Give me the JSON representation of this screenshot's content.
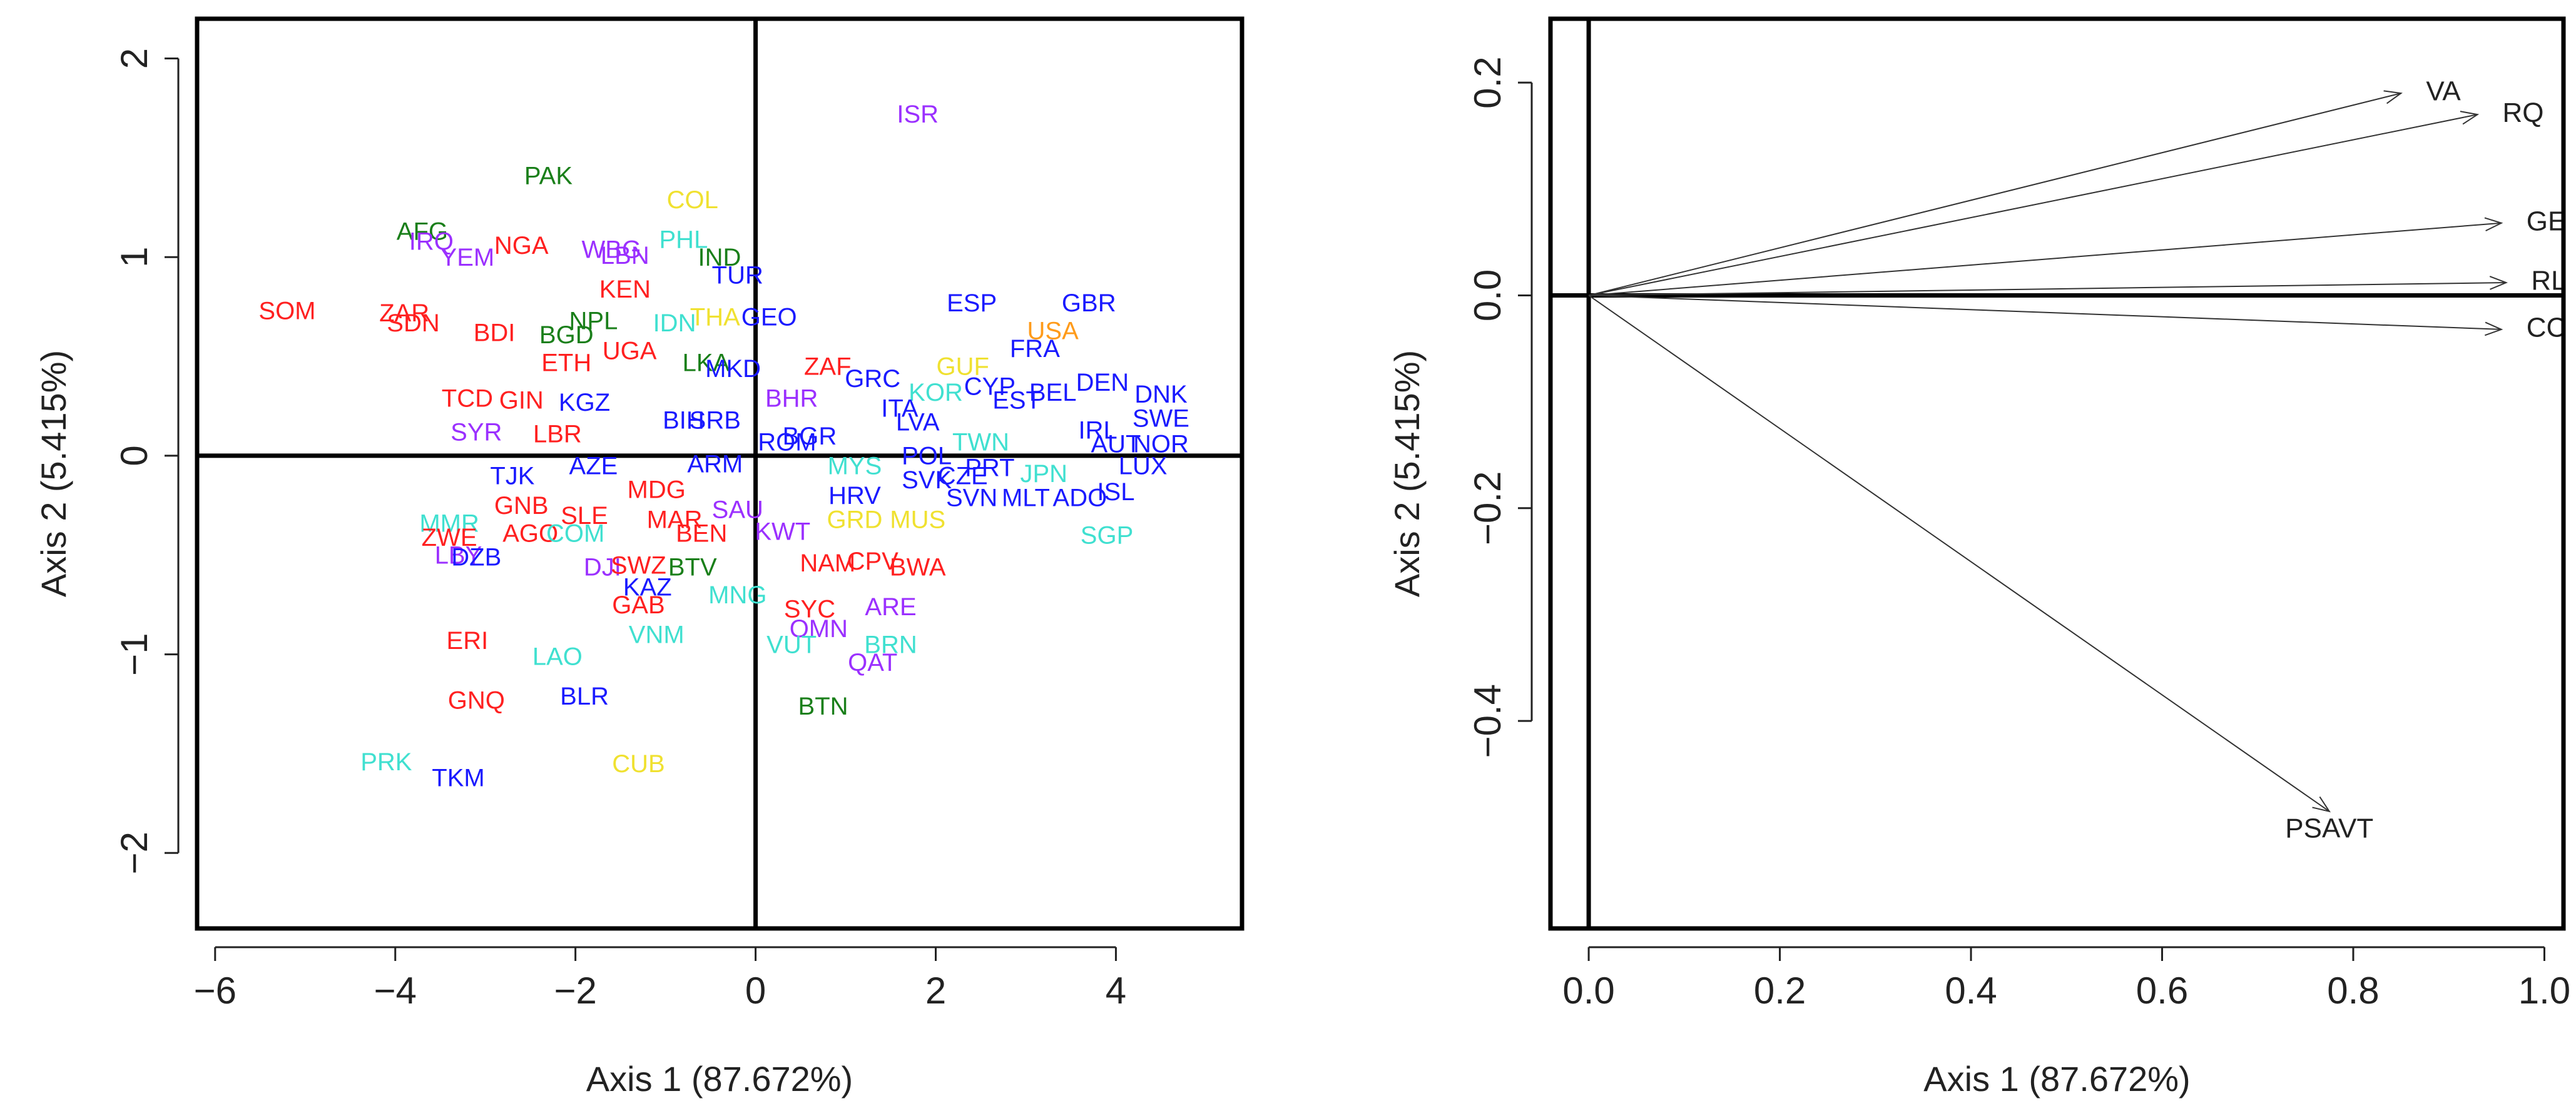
{
  "chart_data": [
    {
      "type": "scatter",
      "title": "",
      "xlabel": "Axis 1 (87.672%)",
      "ylabel": "Axis 2 (5.415%)",
      "xlim": [
        -6.2,
        5.4
      ],
      "ylim": [
        -2.38,
        2.2
      ],
      "xticks": [
        -6,
        -4,
        -2,
        0,
        2,
        4
      ],
      "xtick_labels": [
        "−6",
        "−4",
        "−2",
        "0",
        "2",
        "4"
      ],
      "yticks": [
        -2,
        -1,
        0,
        1,
        2
      ],
      "ytick_labels": [
        "−2",
        "−1",
        "0",
        "1",
        "2"
      ],
      "reference_lines": {
        "x": 0,
        "y": 0
      },
      "points": [
        {
          "label": "ISR",
          "x": 1.8,
          "y": 1.71,
          "color": "#9b30ff"
        },
        {
          "label": "PAK",
          "x": -2.3,
          "y": 1.4,
          "color": "#1a7f1a"
        },
        {
          "label": "COL",
          "x": -0.7,
          "y": 1.28,
          "color": "#f0e130"
        },
        {
          "label": "AFG",
          "x": -3.7,
          "y": 1.12,
          "color": "#1a7f1a"
        },
        {
          "label": "IRQ",
          "x": -3.6,
          "y": 1.07,
          "color": "#9b30ff"
        },
        {
          "label": "YEM",
          "x": -3.2,
          "y": 0.99,
          "color": "#9b30ff"
        },
        {
          "label": "NGA",
          "x": -2.6,
          "y": 1.05,
          "color": "#ff2020"
        },
        {
          "label": "WBG",
          "x": -1.6,
          "y": 1.03,
          "color": "#9b30ff"
        },
        {
          "label": "LBN",
          "x": -1.45,
          "y": 1.0,
          "color": "#9b30ff"
        },
        {
          "label": "PHL",
          "x": -0.8,
          "y": 1.08,
          "color": "#40e0d0"
        },
        {
          "label": "IND",
          "x": -0.4,
          "y": 0.99,
          "color": "#1a7f1a"
        },
        {
          "label": "TUR",
          "x": -0.2,
          "y": 0.9,
          "color": "#1a1aff"
        },
        {
          "label": "KEN",
          "x": -1.45,
          "y": 0.83,
          "color": "#ff2020"
        },
        {
          "label": "SOM",
          "x": -5.2,
          "y": 0.72,
          "color": "#ff2020"
        },
        {
          "label": "ZAR",
          "x": -3.9,
          "y": 0.71,
          "color": "#ff2020"
        },
        {
          "label": "SDN",
          "x": -3.8,
          "y": 0.66,
          "color": "#ff2020"
        },
        {
          "label": "BDI",
          "x": -2.9,
          "y": 0.61,
          "color": "#ff2020"
        },
        {
          "label": "NPL",
          "x": -1.8,
          "y": 0.67,
          "color": "#1a7f1a"
        },
        {
          "label": "BGD",
          "x": -2.1,
          "y": 0.6,
          "color": "#1a7f1a"
        },
        {
          "label": "IDN",
          "x": -0.9,
          "y": 0.66,
          "color": "#40e0d0"
        },
        {
          "label": "THA",
          "x": -0.45,
          "y": 0.69,
          "color": "#f0e130"
        },
        {
          "label": "GEO",
          "x": 0.15,
          "y": 0.69,
          "color": "#1a1aff"
        },
        {
          "label": "ESP",
          "x": 2.4,
          "y": 0.76,
          "color": "#1a1aff"
        },
        {
          "label": "GBR",
          "x": 3.7,
          "y": 0.76,
          "color": "#1a1aff"
        },
        {
          "label": "USA",
          "x": 3.3,
          "y": 0.62,
          "color": "#ff9b1a"
        },
        {
          "label": "FRA",
          "x": 3.1,
          "y": 0.53,
          "color": "#1a1aff"
        },
        {
          "label": "UGA",
          "x": -1.4,
          "y": 0.52,
          "color": "#ff2020"
        },
        {
          "label": "ETH",
          "x": -2.1,
          "y": 0.46,
          "color": "#ff2020"
        },
        {
          "label": "LKA",
          "x": -0.55,
          "y": 0.46,
          "color": "#1a7f1a"
        },
        {
          "label": "MKD",
          "x": -0.25,
          "y": 0.43,
          "color": "#1a1aff"
        },
        {
          "label": "ZAF",
          "x": 0.8,
          "y": 0.44,
          "color": "#ff2020"
        },
        {
          "label": "GRC",
          "x": 1.3,
          "y": 0.38,
          "color": "#1a1aff"
        },
        {
          "label": "GUF",
          "x": 2.3,
          "y": 0.44,
          "color": "#f0e130"
        },
        {
          "label": "KOR",
          "x": 2.0,
          "y": 0.31,
          "color": "#40e0d0"
        },
        {
          "label": "CYP",
          "x": 2.6,
          "y": 0.34,
          "color": "#1a1aff"
        },
        {
          "label": "BEL",
          "x": 3.3,
          "y": 0.31,
          "color": "#1a1aff"
        },
        {
          "label": "DEN",
          "x": 3.85,
          "y": 0.36,
          "color": "#1a1aff"
        },
        {
          "label": "DNK",
          "x": 4.5,
          "y": 0.3,
          "color": "#1a1aff"
        },
        {
          "label": "TCD",
          "x": -3.2,
          "y": 0.28,
          "color": "#ff2020"
        },
        {
          "label": "GIN",
          "x": -2.6,
          "y": 0.27,
          "color": "#ff2020"
        },
        {
          "label": "KGZ",
          "x": -1.9,
          "y": 0.26,
          "color": "#1a1aff"
        },
        {
          "label": "BHR",
          "x": 0.4,
          "y": 0.28,
          "color": "#9b30ff"
        },
        {
          "label": "ITA",
          "x": 1.6,
          "y": 0.23,
          "color": "#1a1aff"
        },
        {
          "label": "EST",
          "x": 2.9,
          "y": 0.27,
          "color": "#1a1aff"
        },
        {
          "label": "LVA",
          "x": 1.8,
          "y": 0.16,
          "color": "#1a1aff"
        },
        {
          "label": "SWE",
          "x": 4.5,
          "y": 0.18,
          "color": "#1a1aff"
        },
        {
          "label": "SYR",
          "x": -3.1,
          "y": 0.11,
          "color": "#9b30ff"
        },
        {
          "label": "LBR",
          "x": -2.2,
          "y": 0.1,
          "color": "#ff2020"
        },
        {
          "label": "BIH",
          "x": -0.8,
          "y": 0.17,
          "color": "#1a1aff"
        },
        {
          "label": "SRB",
          "x": -0.45,
          "y": 0.17,
          "color": "#1a1aff"
        },
        {
          "label": "ROM",
          "x": 0.35,
          "y": 0.06,
          "color": "#1a1aff"
        },
        {
          "label": "BGR",
          "x": 0.6,
          "y": 0.09,
          "color": "#1a1aff"
        },
        {
          "label": "TWN",
          "x": 2.5,
          "y": 0.06,
          "color": "#40e0d0"
        },
        {
          "label": "IRL",
          "x": 3.8,
          "y": 0.12,
          "color": "#1a1aff"
        },
        {
          "label": "AUT",
          "x": 4.0,
          "y": 0.05,
          "color": "#1a1aff"
        },
        {
          "label": "NOR",
          "x": 4.5,
          "y": 0.05,
          "color": "#1a1aff"
        },
        {
          "label": "ARM",
          "x": -0.45,
          "y": -0.05,
          "color": "#1a1aff"
        },
        {
          "label": "MYS",
          "x": 1.1,
          "y": -0.06,
          "color": "#40e0d0"
        },
        {
          "label": "POL",
          "x": 1.9,
          "y": -0.01,
          "color": "#1a1aff"
        },
        {
          "label": "PRT",
          "x": 2.6,
          "y": -0.07,
          "color": "#1a1aff"
        },
        {
          "label": "JPN",
          "x": 3.2,
          "y": -0.1,
          "color": "#40e0d0"
        },
        {
          "label": "LUX",
          "x": 4.3,
          "y": -0.06,
          "color": "#1a1aff"
        },
        {
          "label": "TJK",
          "x": -2.7,
          "y": -0.11,
          "color": "#1a1aff"
        },
        {
          "label": "AZE",
          "x": -1.8,
          "y": -0.06,
          "color": "#1a1aff"
        },
        {
          "label": "MDG",
          "x": -1.1,
          "y": -0.18,
          "color": "#ff2020"
        },
        {
          "label": "SVK",
          "x": 1.9,
          "y": -0.13,
          "color": "#1a1aff"
        },
        {
          "label": "CZE",
          "x": 2.3,
          "y": -0.11,
          "color": "#1a1aff"
        },
        {
          "label": "ISL",
          "x": 4.0,
          "y": -0.19,
          "color": "#1a1aff"
        },
        {
          "label": "HRV",
          "x": 1.1,
          "y": -0.21,
          "color": "#1a1aff"
        },
        {
          "label": "SVN",
          "x": 2.4,
          "y": -0.22,
          "color": "#1a1aff"
        },
        {
          "label": "MLT",
          "x": 3.0,
          "y": -0.22,
          "color": "#1a1aff"
        },
        {
          "label": "ADO",
          "x": 3.6,
          "y": -0.22,
          "color": "#1a1aff"
        },
        {
          "label": "GNB",
          "x": -2.6,
          "y": -0.26,
          "color": "#ff2020"
        },
        {
          "label": "SLE",
          "x": -1.9,
          "y": -0.31,
          "color": "#ff2020"
        },
        {
          "label": "MAR",
          "x": -0.9,
          "y": -0.33,
          "color": "#ff2020"
        },
        {
          "label": "SAU",
          "x": -0.2,
          "y": -0.28,
          "color": "#9b30ff"
        },
        {
          "label": "GRD",
          "x": 1.1,
          "y": -0.33,
          "color": "#f0e130"
        },
        {
          "label": "MUS",
          "x": 1.8,
          "y": -0.33,
          "color": "#f0e130"
        },
        {
          "label": "SGP",
          "x": 3.9,
          "y": -0.41,
          "color": "#40e0d0"
        },
        {
          "label": "MMR",
          "x": -3.4,
          "y": -0.35,
          "color": "#40e0d0"
        },
        {
          "label": "AGO",
          "x": -2.5,
          "y": -0.4,
          "color": "#ff2020"
        },
        {
          "label": "COM",
          "x": -2.0,
          "y": -0.4,
          "color": "#40e0d0"
        },
        {
          "label": "BEN",
          "x": -0.6,
          "y": -0.4,
          "color": "#ff2020"
        },
        {
          "label": "KWT",
          "x": 0.3,
          "y": -0.39,
          "color": "#9b30ff"
        },
        {
          "label": "ZWE",
          "x": -3.4,
          "y": -0.42,
          "color": "#ff2020"
        },
        {
          "label": "LBY",
          "x": -3.3,
          "y": -0.51,
          "color": "#9b30ff"
        },
        {
          "label": "DZB",
          "x": -3.1,
          "y": -0.52,
          "color": "#1a1aff"
        },
        {
          "label": "DJI",
          "x": -1.7,
          "y": -0.57,
          "color": "#9b30ff"
        },
        {
          "label": "SWZ",
          "x": -1.3,
          "y": -0.56,
          "color": "#ff2020"
        },
        {
          "label": "BTV",
          "x": -0.7,
          "y": -0.57,
          "color": "#1a7f1a"
        },
        {
          "label": "NAM",
          "x": 0.8,
          "y": -0.55,
          "color": "#ff2020"
        },
        {
          "label": "CPV",
          "x": 1.3,
          "y": -0.54,
          "color": "#ff2020"
        },
        {
          "label": "BWA",
          "x": 1.8,
          "y": -0.57,
          "color": "#ff2020"
        },
        {
          "label": "KAZ",
          "x": -1.2,
          "y": -0.67,
          "color": "#1a1aff"
        },
        {
          "label": "MNG",
          "x": -0.2,
          "y": -0.71,
          "color": "#40e0d0"
        },
        {
          "label": "GAB",
          "x": -1.3,
          "y": -0.76,
          "color": "#ff2020"
        },
        {
          "label": "SYC",
          "x": 0.6,
          "y": -0.78,
          "color": "#ff2020"
        },
        {
          "label": "ARE",
          "x": 1.5,
          "y": -0.77,
          "color": "#9b30ff"
        },
        {
          "label": "OMN",
          "x": 0.7,
          "y": -0.88,
          "color": "#9b30ff"
        },
        {
          "label": "VNM",
          "x": -1.1,
          "y": -0.91,
          "color": "#40e0d0"
        },
        {
          "label": "VUT",
          "x": 0.4,
          "y": -0.96,
          "color": "#40e0d0"
        },
        {
          "label": "BRN",
          "x": 1.5,
          "y": -0.96,
          "color": "#40e0d0"
        },
        {
          "label": "ERI",
          "x": -3.2,
          "y": -0.94,
          "color": "#ff2020"
        },
        {
          "label": "LAO",
          "x": -2.2,
          "y": -1.02,
          "color": "#40e0d0"
        },
        {
          "label": "QAT",
          "x": 1.3,
          "y": -1.05,
          "color": "#9b30ff"
        },
        {
          "label": "BLR",
          "x": -1.9,
          "y": -1.22,
          "color": "#1a1aff"
        },
        {
          "label": "GNQ",
          "x": -3.1,
          "y": -1.24,
          "color": "#ff2020"
        },
        {
          "label": "BTN",
          "x": 0.75,
          "y": -1.27,
          "color": "#1a7f1a"
        },
        {
          "label": "PRK",
          "x": -4.1,
          "y": -1.55,
          "color": "#40e0d0"
        },
        {
          "label": "CUB",
          "x": -1.3,
          "y": -1.56,
          "color": "#f0e130"
        },
        {
          "label": "TKM",
          "x": -3.3,
          "y": -1.63,
          "color": "#1a1aff"
        }
      ]
    },
    {
      "type": "biplot-loadings",
      "title": "",
      "xlabel": "Axis 1 (87.672%)",
      "ylabel": "Axis 2 (5.415%)",
      "xlim": [
        -0.04,
        1.02
      ],
      "ylim": [
        -0.595,
        0.26
      ],
      "xticks": [
        0.0,
        0.2,
        0.4,
        0.6,
        0.8,
        1.0
      ],
      "xtick_labels": [
        "0.0",
        "0.2",
        "0.4",
        "0.6",
        "0.8",
        "1.0"
      ],
      "yticks": [
        -0.4,
        -0.2,
        0.0,
        0.2
      ],
      "ytick_labels": [
        "−0.4",
        "−0.2",
        "0.0",
        "0.2"
      ],
      "reference_lines": {
        "x": 0,
        "y": 0
      },
      "vectors": [
        {
          "label": "VA",
          "x": 0.85,
          "y": 0.19
        },
        {
          "label": "RQ",
          "x": 0.93,
          "y": 0.17
        },
        {
          "label": "GE",
          "x": 0.955,
          "y": 0.068
        },
        {
          "label": "RL",
          "x": 0.96,
          "y": 0.012
        },
        {
          "label": "CC",
          "x": 0.955,
          "y": -0.032
        },
        {
          "label": "PSAVT",
          "x": 0.775,
          "y": -0.485
        }
      ]
    }
  ]
}
